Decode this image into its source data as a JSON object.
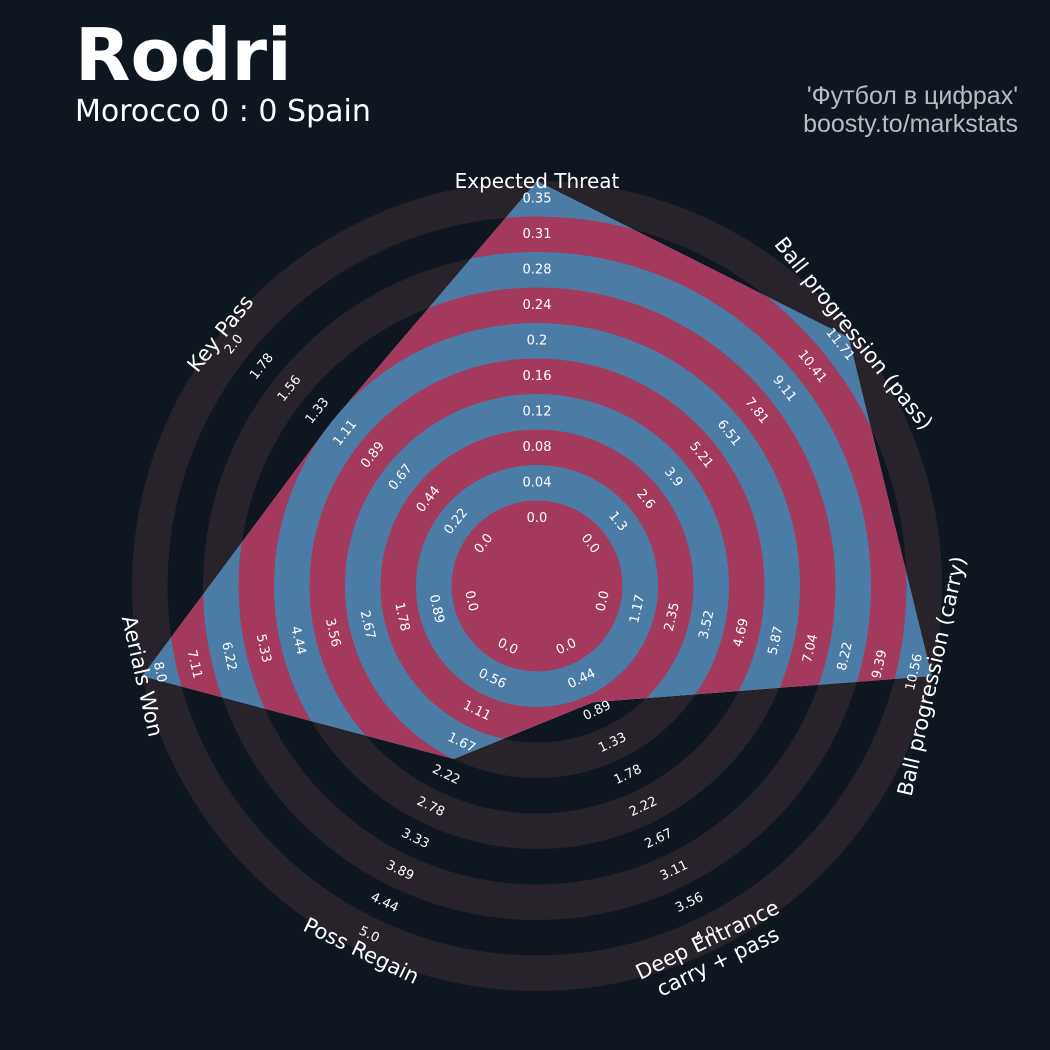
{
  "header": {
    "title": "Rodri",
    "subtitle": "Morocco 0 : 0 Spain",
    "credit_line1": "'Футбол в цифрах'",
    "credit_line2": "boosty.to/markstats"
  },
  "colors": {
    "background": "#0e1720",
    "ring_dark": "#0e1720",
    "ring_light": "#28232a",
    "polygon_fill": "#4b7ca6",
    "ring_highlight": "#a33a5e",
    "text": "#ffffff",
    "credit_text": "#b9bcc0"
  },
  "chart_data": {
    "type": "radar",
    "title": "Rodri",
    "subtitle": "Morocco 0 : 0 Spain",
    "params": [
      {
        "label": "Expected Threat",
        "value": 0.35,
        "min": 0.0,
        "max": 0.35,
        "ticks": [
          "0.0",
          "0.04",
          "0.08",
          "0.12",
          "0.16",
          "0.2",
          "0.24",
          "0.28",
          "0.31",
          "0.35"
        ]
      },
      {
        "label": "Ball progression (pass)",
        "value": 11.5,
        "min": 0.0,
        "max": 11.71,
        "ticks": [
          "0.0",
          "1.3",
          "2.6",
          "3.9",
          "5.21",
          "6.51",
          "7.81",
          "9.11",
          "10.41",
          "11.71"
        ]
      },
      {
        "label": "Ball progression (carry)",
        "value": 10.56,
        "min": 0.0,
        "max": 10.56,
        "ticks": [
          "0.0",
          "1.17",
          "2.35",
          "3.52",
          "4.69",
          "5.87",
          "7.04",
          "8.22",
          "9.39",
          "10.56"
        ]
      },
      {
        "label": "Deep Entrance\ncarry + pass",
        "value": 0.89,
        "min": 0.0,
        "max": 4.0,
        "ticks": [
          "0.0",
          "0.44",
          "0.89",
          "1.33",
          "1.78",
          "2.22",
          "2.67",
          "3.11",
          "3.56",
          "4.0"
        ]
      },
      {
        "label": "Poss Regain",
        "value": 2.0,
        "min": 0.0,
        "max": 5.0,
        "ticks": [
          "0.0",
          "0.56",
          "1.11",
          "1.67",
          "2.22",
          "2.78",
          "3.33",
          "3.89",
          "4.44",
          "5.0"
        ]
      },
      {
        "label": "Aerials Won",
        "value": 8.0,
        "min": 0.0,
        "max": 8.0,
        "ticks": [
          "0.0",
          "0.89",
          "1.78",
          "2.67",
          "3.56",
          "4.44",
          "5.33",
          "6.22",
          "7.11",
          "8.0"
        ]
      },
      {
        "label": "Key Pass",
        "value": 1.2,
        "min": 0.0,
        "max": 2.0,
        "ticks": [
          "0.0",
          "0.22",
          "0.44",
          "0.67",
          "0.89",
          "1.11",
          "1.33",
          "1.56",
          "1.78",
          "2.0"
        ]
      }
    ]
  }
}
